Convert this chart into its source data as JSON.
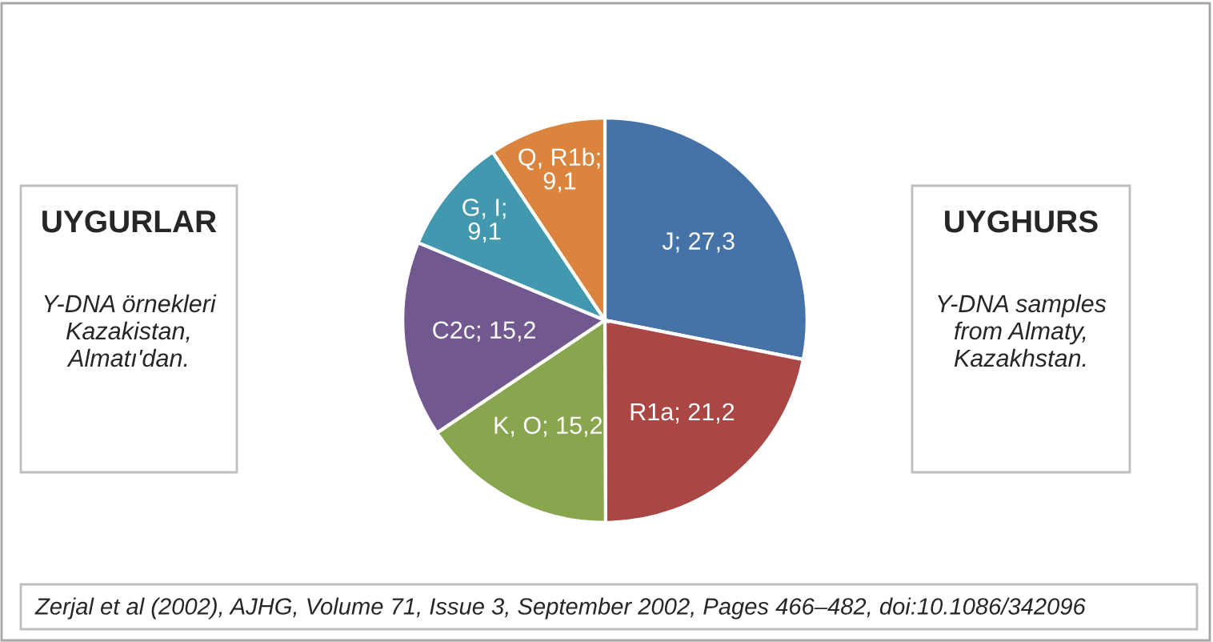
{
  "chart_data": {
    "type": "pie",
    "categories": [
      "J; 27,3",
      "R1a; 21,2",
      "K, O; 15,2",
      "C2c; 15,2",
      "G, I;\n9,1",
      "Q, R1b;\n9,1"
    ],
    "values": [
      27.3,
      21.2,
      15.2,
      15.2,
      9.1,
      9.1
    ],
    "colors": [
      "#4572a7",
      "#aa4643",
      "#89a54e",
      "#71588f",
      "#4198af",
      "#db843d"
    ],
    "annotations": [
      "UYGURLAR",
      "Y-DNA örnekleri\nKazakistan,\nAlmatı'dan.",
      "UYGHURS",
      "Y-DNA samples\nfrom Almaty,\nKazakhstan.",
      "Zerjal et al (2002), AJHG, Volume 71, Issue 3, September 2002, Pages 466–482, doi:10.1086/342096"
    ],
    "legend": false
  }
}
